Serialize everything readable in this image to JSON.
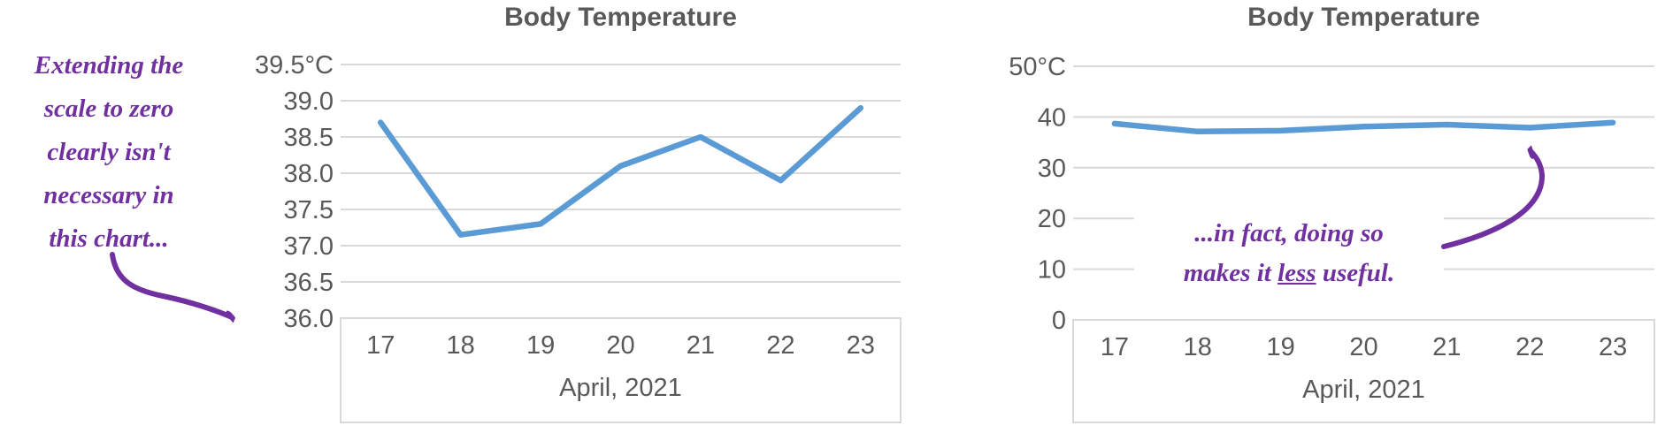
{
  "page": {
    "background": "#ffffff"
  },
  "colors": {
    "line_blue": "#5B9BD5",
    "gridline_gray": "#D9D9D9",
    "axis_text_gray": "#595959",
    "annotation_purple": "#7030A0"
  },
  "chart_data": [
    {
      "type": "line",
      "title": "Body Temperature",
      "categories": [
        "17",
        "18",
        "19",
        "20",
        "21",
        "22",
        "23"
      ],
      "values": [
        38.7,
        37.15,
        37.3,
        38.1,
        38.5,
        37.9,
        38.9
      ],
      "xlabel": "April, 2021",
      "ylabel": "",
      "ylim": [
        36.0,
        39.5
      ],
      "yticks": [
        {
          "value": 39.5,
          "label": "39.5°C"
        },
        {
          "value": 39.0,
          "label": "39.0"
        },
        {
          "value": 38.5,
          "label": "38.5"
        },
        {
          "value": 38.0,
          "label": "38.0"
        },
        {
          "value": 37.5,
          "label": "37.5"
        },
        {
          "value": 37.0,
          "label": "37.0"
        },
        {
          "value": 36.5,
          "label": "36.5"
        },
        {
          "value": 36.0,
          "label": "36.0"
        }
      ],
      "grid": true,
      "legend": "none"
    },
    {
      "type": "line",
      "title": "Body Temperature",
      "categories": [
        "17",
        "18",
        "19",
        "20",
        "21",
        "22",
        "23"
      ],
      "values": [
        38.7,
        37.15,
        37.3,
        38.1,
        38.5,
        37.9,
        38.9
      ],
      "xlabel": "April, 2021",
      "ylabel": "",
      "ylim": [
        0,
        50
      ],
      "yticks": [
        {
          "value": 50,
          "label": "50°C"
        },
        {
          "value": 40,
          "label": "40"
        },
        {
          "value": 30,
          "label": "30"
        },
        {
          "value": 20,
          "label": "20"
        },
        {
          "value": 10,
          "label": "10"
        },
        {
          "value": 0,
          "label": "0"
        }
      ],
      "grid": true,
      "legend": "none"
    }
  ],
  "annotations": {
    "left": {
      "lines": [
        "Extending the",
        "scale to zero",
        "clearly isn't",
        "necessary in",
        "this chart..."
      ],
      "color": "#7030A0"
    },
    "right": {
      "line1": "...in fact, doing so",
      "line2_pre": "makes it ",
      "line2_underlined": "less",
      "line2_post": " useful.",
      "color": "#7030A0"
    }
  }
}
